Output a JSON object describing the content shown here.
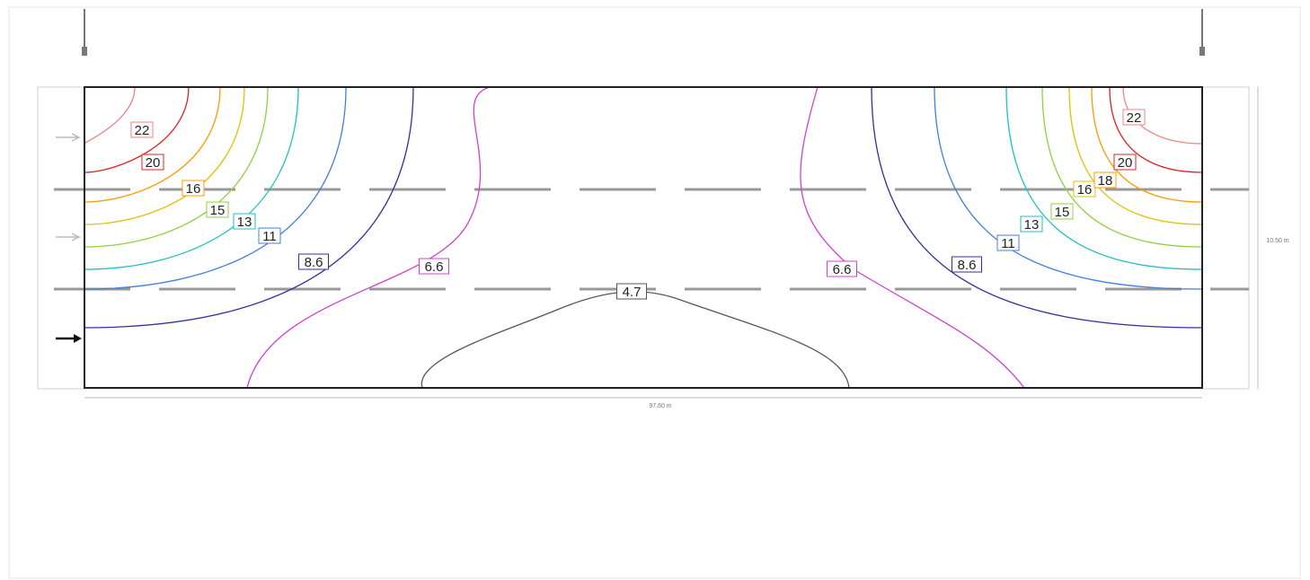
{
  "dimensions": {
    "length": "97.60 m",
    "width": "10.50 m"
  },
  "isolines": {
    "left": [
      "22",
      "20",
      "16",
      "15",
      "13",
      "11",
      "8.6",
      "6.6"
    ],
    "center": [
      "4.7"
    ],
    "right": [
      "6.6",
      "8.6",
      "11",
      "13",
      "15",
      "16",
      "18",
      "20",
      "22"
    ]
  }
}
